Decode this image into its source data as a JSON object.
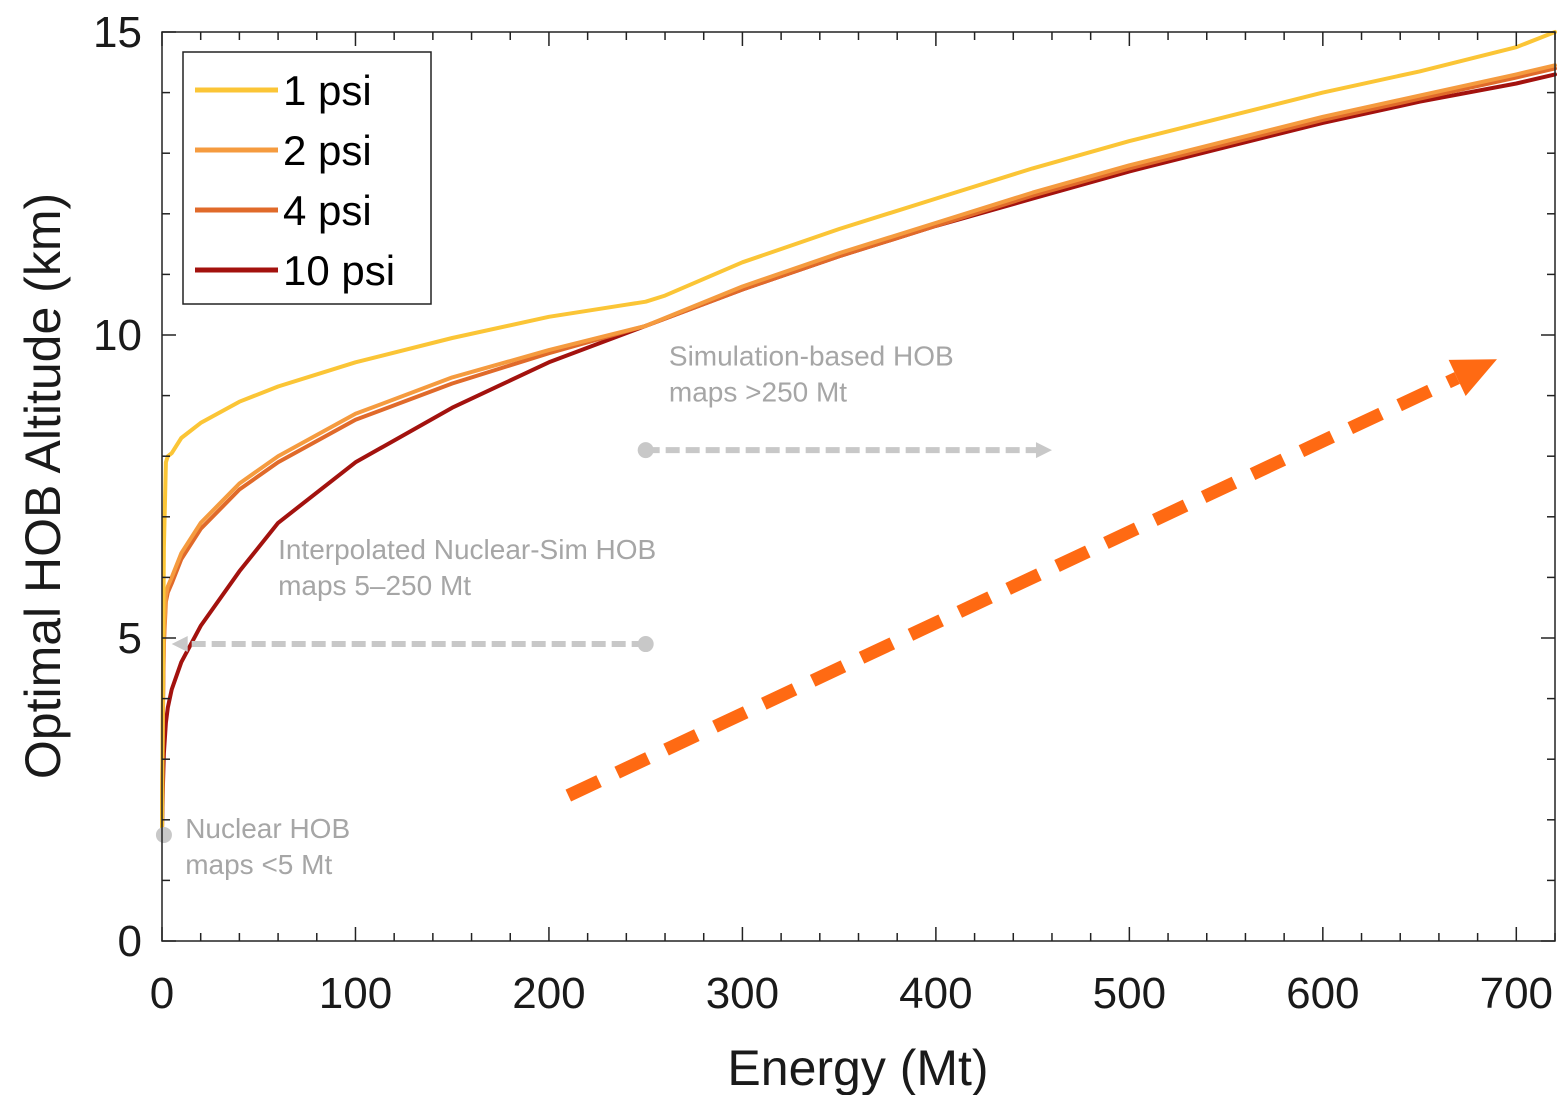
{
  "chart_data": {
    "type": "line",
    "xlabel": "Energy (Mt)",
    "ylabel": "Optimal HOB Altitude (km)",
    "xlim": [
      0,
      720
    ],
    "ylim": [
      0,
      15
    ],
    "xticks": [
      0,
      100,
      200,
      300,
      400,
      500,
      600,
      700
    ],
    "yticks": [
      0,
      5,
      10,
      15
    ],
    "xtick_labels": [
      "0",
      "100",
      "200",
      "300",
      "400",
      "500",
      "600",
      "700"
    ],
    "ytick_labels": [
      "0",
      "5",
      "10",
      "15"
    ],
    "grid": false,
    "legend_position": "top-left",
    "series": [
      {
        "name": "1 psi",
        "color": "#fbc536",
        "x": [
          0,
          0.5,
          1,
          2,
          3,
          5,
          10,
          20,
          40,
          60,
          100,
          150,
          200,
          240,
          250,
          260,
          300,
          350,
          400,
          450,
          500,
          550,
          600,
          650,
          700,
          720
        ],
        "y": [
          1.8,
          4.5,
          6.5,
          7.9,
          8.0,
          8.05,
          8.3,
          8.55,
          8.9,
          9.15,
          9.55,
          9.95,
          10.3,
          10.5,
          10.55,
          10.65,
          11.2,
          11.75,
          12.25,
          12.75,
          13.2,
          13.6,
          14.0,
          14.35,
          14.75,
          15.0
        ]
      },
      {
        "name": "2 psi",
        "color": "#f59b3f",
        "x": [
          0,
          0.5,
          1,
          2,
          3,
          5,
          10,
          20,
          40,
          60,
          100,
          150,
          200,
          250,
          300,
          350,
          400,
          450,
          500,
          550,
          600,
          650,
          700,
          720
        ],
        "y": [
          2.0,
          4.0,
          5.0,
          5.7,
          5.85,
          6.0,
          6.4,
          6.9,
          7.55,
          8.0,
          8.7,
          9.3,
          9.75,
          10.15,
          10.8,
          11.35,
          11.85,
          12.35,
          12.8,
          13.2,
          13.6,
          13.95,
          14.3,
          14.45
        ]
      },
      {
        "name": "4 psi",
        "color": "#e06a2a",
        "x": [
          0,
          0.5,
          1,
          2,
          3,
          5,
          10,
          20,
          40,
          60,
          100,
          150,
          200,
          250,
          300,
          350,
          400,
          450,
          500,
          550,
          600,
          650,
          700,
          720
        ],
        "y": [
          2.0,
          3.8,
          4.9,
          5.6,
          5.75,
          5.9,
          6.3,
          6.8,
          7.45,
          7.9,
          8.6,
          9.2,
          9.7,
          10.15,
          10.75,
          11.3,
          11.8,
          12.3,
          12.75,
          13.15,
          13.55,
          13.9,
          14.25,
          14.4
        ]
      },
      {
        "name": "10 psi",
        "color": "#a3120e",
        "x": [
          0,
          0.5,
          1,
          2,
          3,
          5,
          10,
          20,
          40,
          60,
          100,
          150,
          200,
          250,
          300,
          350,
          400,
          450,
          500,
          550,
          600,
          650,
          700,
          720
        ],
        "y": [
          1.8,
          2.6,
          3.1,
          3.6,
          3.85,
          4.15,
          4.6,
          5.2,
          6.1,
          6.9,
          7.9,
          8.8,
          9.55,
          10.15,
          10.75,
          11.3,
          11.8,
          12.25,
          12.7,
          13.1,
          13.5,
          13.85,
          14.15,
          14.3
        ]
      }
    ],
    "annotations": [
      {
        "id": "nuclear",
        "lines": [
          "Nuclear HOB",
          "maps <5 Mt"
        ],
        "marker": {
          "x": 1,
          "y": 1.75
        },
        "text_at": {
          "x": 12,
          "y": 1.7
        }
      },
      {
        "id": "interpolated",
        "lines": [
          "Interpolated Nuclear-Sim HOB",
          "maps 5–250 Mt"
        ],
        "arrow": {
          "x1": 250,
          "y1": 4.9,
          "x2": 5,
          "y2": 4.9
        },
        "text_at": {
          "x": 60,
          "y": 6.3
        }
      },
      {
        "id": "simulation",
        "lines": [
          "Simulation-based HOB",
          "maps >250 Mt"
        ],
        "arrow": {
          "x1": 250,
          "y1": 8.1,
          "x2": 460,
          "y2": 8.1
        },
        "text_at": {
          "x": 262,
          "y": 9.5
        }
      }
    ],
    "trend_arrow": {
      "color": "#ff6a13",
      "x1": 210,
      "y1": 2.4,
      "x2": 690,
      "y2": 9.6
    }
  }
}
